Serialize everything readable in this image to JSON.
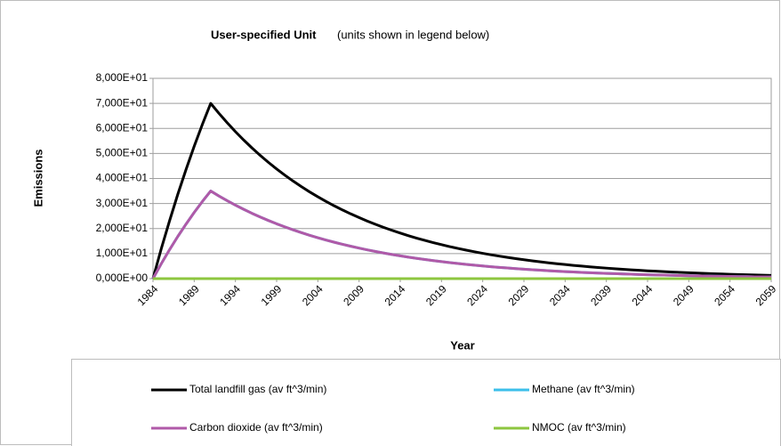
{
  "chart_data": {
    "type": "line",
    "title": "User-specified Unit",
    "subtitle": "(units shown in legend below)",
    "xlabel": "Year",
    "ylabel": "Emissions",
    "x": [
      1984,
      1985,
      1986,
      1987,
      1988,
      1989,
      1990,
      1991,
      1992,
      1993,
      1994,
      1995,
      1996,
      1997,
      1998,
      1999,
      2000,
      2001,
      2002,
      2003,
      2004,
      2005,
      2006,
      2007,
      2008,
      2009,
      2010,
      2011,
      2012,
      2013,
      2014,
      2015,
      2016,
      2017,
      2018,
      2019,
      2020,
      2021,
      2022,
      2023,
      2024,
      2025,
      2026,
      2027,
      2028,
      2029,
      2030,
      2031,
      2032,
      2033,
      2034,
      2035,
      2036,
      2037,
      2038,
      2039,
      2040,
      2041,
      2042,
      2043,
      2044,
      2045,
      2046,
      2047,
      2048,
      2049,
      2050,
      2051,
      2052,
      2053,
      2054,
      2055,
      2056,
      2057,
      2058,
      2059
    ],
    "xlim": [
      1984,
      2059
    ],
    "xticks": [
      1984,
      1989,
      1994,
      1999,
      2004,
      2009,
      2014,
      2019,
      2024,
      2029,
      2034,
      2039,
      2044,
      2049,
      2054,
      2059
    ],
    "ylim": [
      0,
      80
    ],
    "yticks": [
      {
        "value": 0,
        "label": "0,000E+00"
      },
      {
        "value": 10,
        "label": "1,000E+01"
      },
      {
        "value": 20,
        "label": "2,000E+01"
      },
      {
        "value": 30,
        "label": "3,000E+01"
      },
      {
        "value": 40,
        "label": "4,000E+01"
      },
      {
        "value": 50,
        "label": "5,000E+01"
      },
      {
        "value": 60,
        "label": "6,000E+01"
      },
      {
        "value": 70,
        "label": "7,000E+01"
      },
      {
        "value": 80,
        "label": "8,000E+01"
      }
    ],
    "grid": true,
    "series": [
      {
        "name": "Total landfill gas (av ft^3/min)",
        "color": "#000000",
        "values": [
          0,
          11.9,
          23,
          33.6,
          43.5,
          52.9,
          61.7,
          70,
          66.02,
          62.26,
          58.71,
          55.37,
          52.22,
          49.25,
          46.44,
          43.8,
          41.31,
          38.96,
          36.74,
          34.65,
          32.68,
          30.82,
          29.06,
          27.41,
          25.85,
          24.38,
          22.99,
          21.68,
          20.45,
          19.28,
          18.19,
          17.15,
          16.17,
          15.25,
          14.39,
          13.57,
          12.79,
          12.07,
          11.38,
          10.73,
          10.12,
          9.54,
          9,
          8.49,
          8.01,
          7.55,
          7.12,
          6.71,
          6.33,
          5.97,
          5.63,
          5.31,
          5.01,
          4.72,
          4.45,
          4.2,
          3.96,
          3.74,
          3.52,
          3.32,
          3.13,
          2.96,
          2.79,
          2.63,
          2.48,
          2.34,
          2.2,
          2.08,
          1.96,
          1.85,
          1.74,
          1.64,
          1.55,
          1.46,
          1.38,
          1.3
        ]
      },
      {
        "name": "Methane (av ft^3/min)",
        "color": "#3cbfea",
        "values": [
          0,
          5.95,
          11.5,
          16.8,
          21.75,
          26.45,
          30.85,
          35,
          33.01,
          31.13,
          29.36,
          27.69,
          26.11,
          24.63,
          23.22,
          21.9,
          20.66,
          19.48,
          18.37,
          17.33,
          16.34,
          15.41,
          14.53,
          13.71,
          12.93,
          12.19,
          11.5,
          10.84,
          10.23,
          9.64,
          9.1,
          8.58,
          8.09,
          7.63,
          7.2,
          6.79,
          6.4,
          6.04,
          5.69,
          5.37,
          5.06,
          4.77,
          4.5,
          4.25,
          4.01,
          3.78,
          3.56,
          3.36,
          3.17,
          2.99,
          2.82,
          2.66,
          2.51,
          2.36,
          2.23,
          2.1,
          1.98,
          1.87,
          1.76,
          1.66,
          1.57,
          1.48,
          1.4,
          1.32,
          1.24,
          1.17,
          1.1,
          1.04,
          0.98,
          0.93,
          0.87,
          0.82,
          0.78,
          0.73,
          0.69,
          0.65
        ]
      },
      {
        "name": "Carbon dioxide (av ft^3/min)",
        "color": "#b05aa8",
        "values": [
          0,
          5.95,
          11.5,
          16.8,
          21.75,
          26.45,
          30.85,
          35,
          33.01,
          31.13,
          29.36,
          27.69,
          26.11,
          24.63,
          23.22,
          21.9,
          20.66,
          19.48,
          18.37,
          17.33,
          16.34,
          15.41,
          14.53,
          13.71,
          12.93,
          12.19,
          11.5,
          10.84,
          10.23,
          9.64,
          9.1,
          8.58,
          8.09,
          7.63,
          7.2,
          6.79,
          6.4,
          6.04,
          5.69,
          5.37,
          5.06,
          4.77,
          4.5,
          4.25,
          4.01,
          3.78,
          3.56,
          3.36,
          3.17,
          2.99,
          2.82,
          2.66,
          2.51,
          2.36,
          2.23,
          2.1,
          1.98,
          1.87,
          1.76,
          1.66,
          1.57,
          1.48,
          1.4,
          1.32,
          1.24,
          1.17,
          1.1,
          1.04,
          0.98,
          0.93,
          0.87,
          0.82,
          0.78,
          0.73,
          0.69,
          0.65
        ]
      },
      {
        "name": "NMOC (av ft^3/min)",
        "color": "#8dc63f",
        "values": [
          0,
          0,
          0,
          0,
          0,
          0,
          0,
          0,
          0,
          0,
          0,
          0,
          0,
          0,
          0,
          0,
          0,
          0,
          0,
          0,
          0,
          0,
          0,
          0,
          0,
          0,
          0,
          0,
          0,
          0,
          0,
          0,
          0,
          0,
          0,
          0,
          0,
          0,
          0,
          0,
          0,
          0,
          0,
          0,
          0,
          0,
          0,
          0,
          0,
          0,
          0,
          0,
          0,
          0,
          0,
          0,
          0,
          0,
          0,
          0,
          0,
          0,
          0,
          0,
          0,
          0,
          0,
          0,
          0,
          0,
          0,
          0,
          0,
          0,
          0,
          0
        ]
      }
    ]
  }
}
